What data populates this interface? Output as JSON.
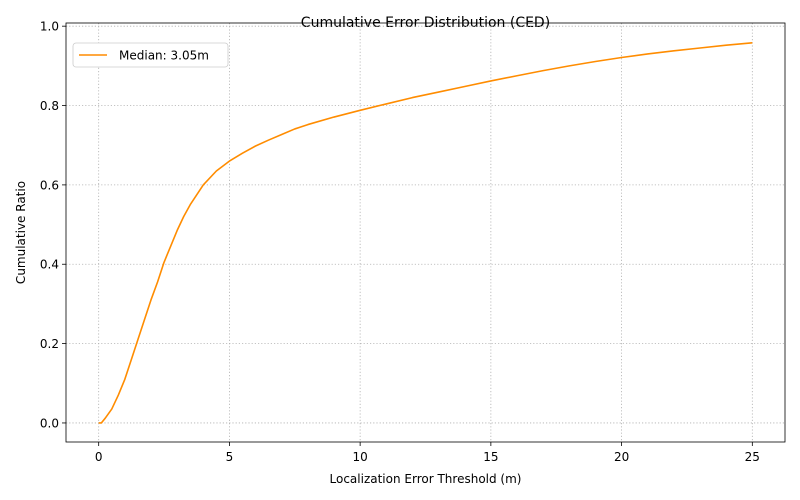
{
  "chart_data": {
    "type": "line",
    "title": "Cumulative Error Distribution (CED)",
    "xlabel": "Localization Error Threshold (m)",
    "ylabel": "Cumulative Ratio",
    "xlim": [
      -1.25,
      26.25
    ],
    "ylim": [
      -0.048,
      1.008
    ],
    "xticks": [
      0,
      5,
      10,
      15,
      20,
      25
    ],
    "xtick_labels": [
      "0",
      "5",
      "10",
      "15",
      "20",
      "25"
    ],
    "yticks": [
      0.0,
      0.2,
      0.4,
      0.6,
      0.8,
      1.0
    ],
    "ytick_labels": [
      "0.0",
      "0.2",
      "0.4",
      "0.6",
      "0.8",
      "1.0"
    ],
    "grid": true,
    "legend_position": "top-left",
    "series": [
      {
        "name": "Median: 3.05m",
        "color": "#ff8c00",
        "x": [
          0,
          0.1,
          0.25,
          0.5,
          0.75,
          1.0,
          1.25,
          1.5,
          1.75,
          2.0,
          2.25,
          2.5,
          2.75,
          3.0,
          3.25,
          3.5,
          3.75,
          4.0,
          4.5,
          5.0,
          5.5,
          6.0,
          6.5,
          7.0,
          7.5,
          8.0,
          9.0,
          10.0,
          11.0,
          12.0,
          13.0,
          14.0,
          15.0,
          16.0,
          17.0,
          18.0,
          19.0,
          20.0,
          21.0,
          22.0,
          23.0,
          24.0,
          25.0
        ],
        "y": [
          0.0,
          0.0,
          0.012,
          0.035,
          0.07,
          0.11,
          0.16,
          0.21,
          0.26,
          0.31,
          0.355,
          0.405,
          0.445,
          0.485,
          0.52,
          0.55,
          0.575,
          0.6,
          0.635,
          0.66,
          0.68,
          0.698,
          0.713,
          0.727,
          0.741,
          0.752,
          0.771,
          0.788,
          0.804,
          0.82,
          0.834,
          0.848,
          0.862,
          0.875,
          0.888,
          0.9,
          0.911,
          0.921,
          0.93,
          0.938,
          0.945,
          0.952,
          0.958
        ]
      }
    ]
  }
}
